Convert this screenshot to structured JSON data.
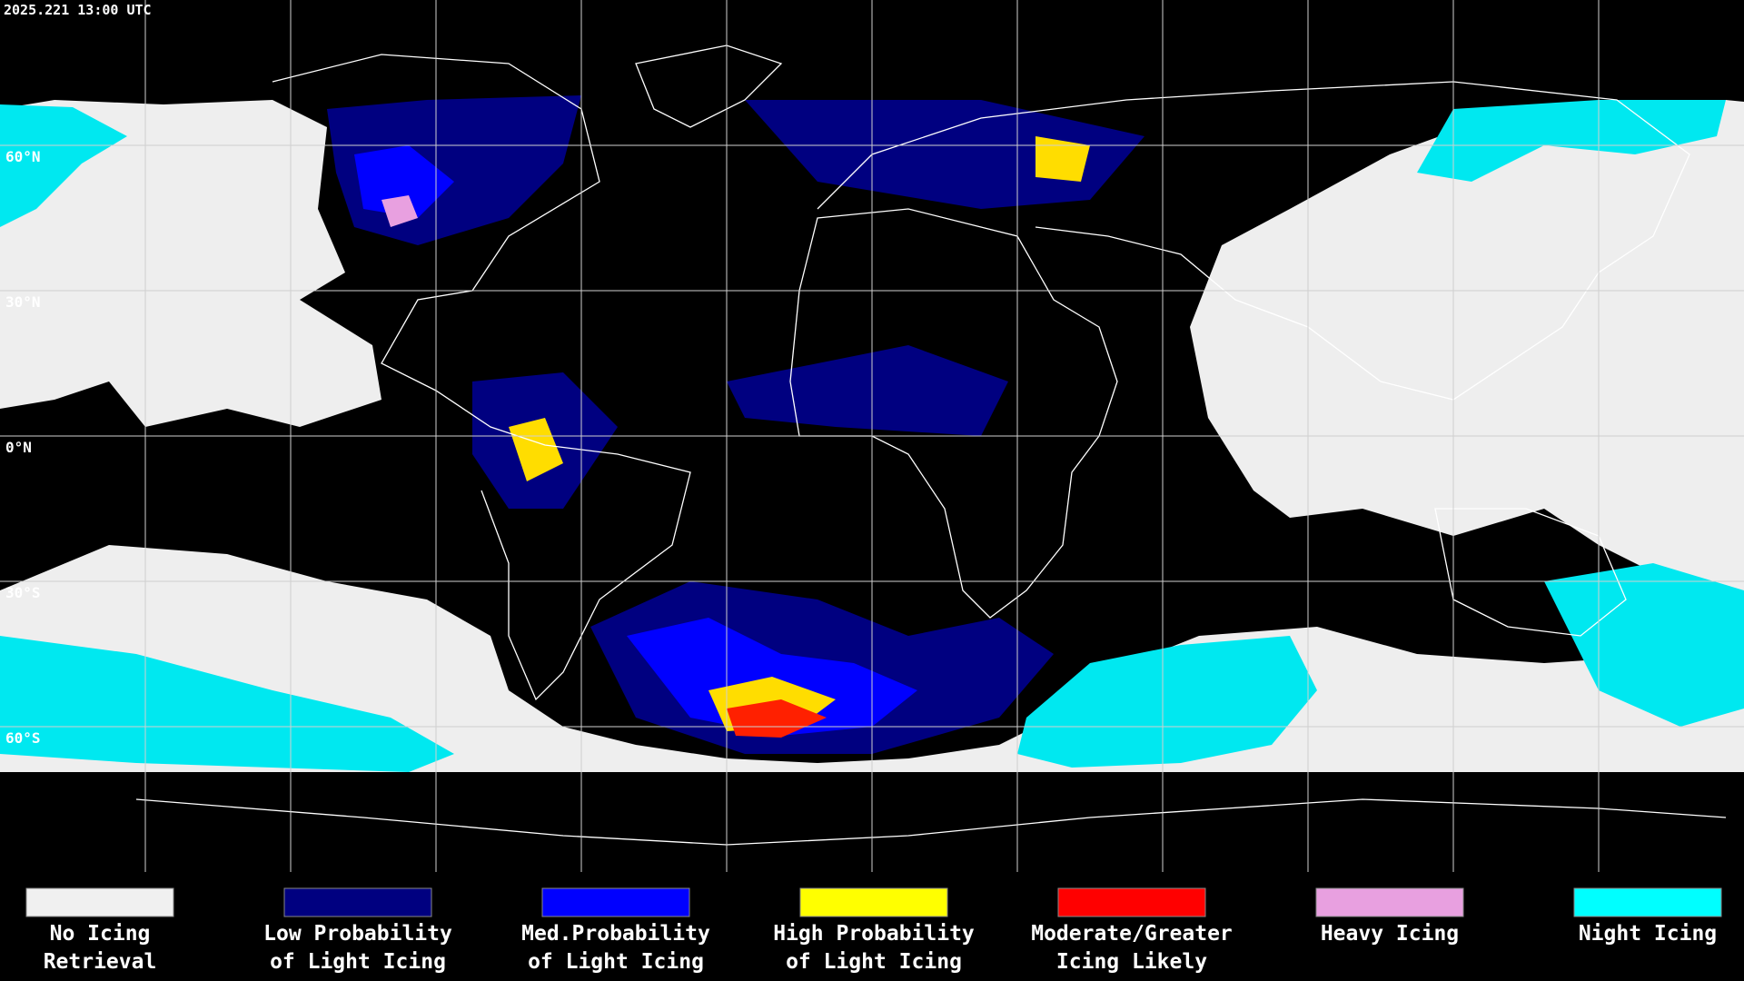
{
  "header": {
    "timestamp": "2025.221 13:00 UTC"
  },
  "map": {
    "latitude_labels": [
      "60°N",
      "30°N",
      "0°N",
      "30°S",
      "60°S"
    ]
  },
  "legend": {
    "items": [
      {
        "lines": [
          "No Icing",
          "Retrieval"
        ],
        "color": "#f0f0f0"
      },
      {
        "lines": [
          "Low Probability",
          "of Light Icing"
        ],
        "color": "#000080"
      },
      {
        "lines": [
          "Med.Probability",
          "of Light Icing"
        ],
        "color": "#0000ff"
      },
      {
        "lines": [
          "High Probability",
          "of Light Icing"
        ],
        "color": "#ffff00"
      },
      {
        "lines": [
          "Moderate/Greater",
          "Icing Likely"
        ],
        "color": "#ff0000"
      },
      {
        "lines": [
          "Heavy Icing"
        ],
        "color": "#e8a0e0"
      },
      {
        "lines": [
          "Night Icing"
        ],
        "color": "#00ffff"
      }
    ]
  }
}
